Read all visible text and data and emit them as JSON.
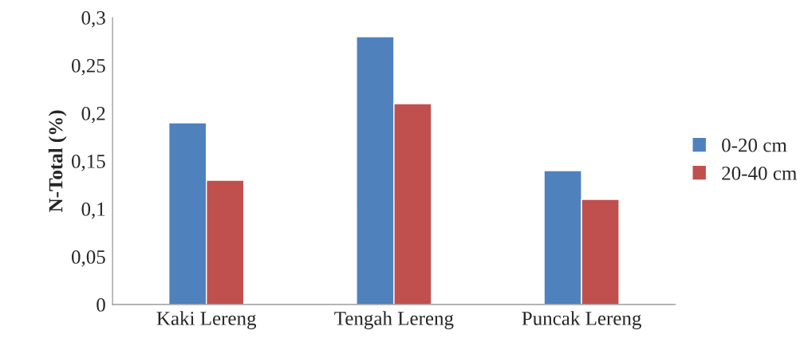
{
  "chart_data": {
    "type": "bar",
    "ylabel": "N-Total (%)",
    "categories": [
      "Kaki Lereng",
      "Tengah Lereng",
      "Puncak Lereng"
    ],
    "series": [
      {
        "name": "0-20 cm",
        "color": "#4f81bd",
        "values": [
          0.19,
          0.28,
          0.14
        ]
      },
      {
        "name": "20-40 cm",
        "color": "#c0504d",
        "values": [
          0.13,
          0.21,
          0.11
        ]
      }
    ],
    "ylim": [
      0,
      0.3
    ],
    "yticks": [
      0,
      {
        "value": 0.05,
        "label": "0,05"
      },
      {
        "value": 0.1,
        "label": "0,1"
      },
      {
        "value": 0.15,
        "label": "0,15"
      },
      {
        "value": 0.2,
        "label": "0,2"
      },
      {
        "value": 0.25,
        "label": "0,25"
      },
      {
        "value": 0.3,
        "label": "0,3"
      }
    ],
    "grid": false,
    "legend": "right"
  }
}
